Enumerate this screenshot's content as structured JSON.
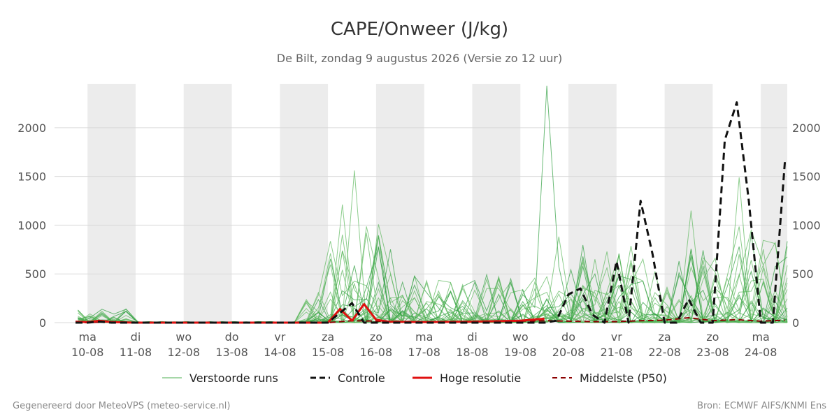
{
  "chart_data": {
    "type": "line",
    "title": "CAPE/Onweer (J/kg)",
    "subtitle": "De Bilt, zondag  9 augustus 2026 (Versie zo 12 uur)",
    "ylim": [
      0,
      2450
    ],
    "y_ticks": [
      0,
      500,
      1000,
      1500,
      2000
    ],
    "x_range_days": [
      -0.25,
      14.55
    ],
    "grid": true,
    "weekend_shading": [
      [
        0,
        1
      ],
      [
        2,
        3
      ],
      [
        4,
        5
      ],
      [
        6,
        7
      ],
      [
        8,
        9
      ],
      [
        10,
        11
      ],
      [
        12,
        13
      ],
      [
        14,
        14.55
      ]
    ],
    "x_ticks": [
      {
        "day": 0,
        "weekday": "ma",
        "date": "10-08"
      },
      {
        "day": 1,
        "weekday": "di",
        "date": "11-08"
      },
      {
        "day": 2,
        "weekday": "wo",
        "date": "12-08"
      },
      {
        "day": 3,
        "weekday": "do",
        "date": "13-08"
      },
      {
        "day": 4,
        "weekday": "vr",
        "date": "14-08"
      },
      {
        "day": 5,
        "weekday": "za",
        "date": "15-08"
      },
      {
        "day": 6,
        "weekday": "zo",
        "date": "16-08"
      },
      {
        "day": 7,
        "weekday": "ma",
        "date": "17-08"
      },
      {
        "day": 8,
        "weekday": "di",
        "date": "18-08"
      },
      {
        "day": 9,
        "weekday": "wo",
        "date": "19-08"
      },
      {
        "day": 10,
        "weekday": "do",
        "date": "20-08"
      },
      {
        "day": 11,
        "weekday": "vr",
        "date": "21-08"
      },
      {
        "day": 12,
        "weekday": "za",
        "date": "22-08"
      },
      {
        "day": 13,
        "weekday": "zo",
        "date": "23-08"
      },
      {
        "day": 14,
        "weekday": "ma",
        "date": "24-08"
      }
    ],
    "legend": {
      "placement": "bottom",
      "entries": [
        {
          "label": "Verstoorde runs",
          "color": "#4caf50",
          "style": "thin"
        },
        {
          "label": "Controle",
          "color": "#111111",
          "style": "dashed"
        },
        {
          "label": "Hoge resolutie",
          "color": "#e01010",
          "style": "solid"
        },
        {
          "label": "Middelste (P50)",
          "color": "#8b0000",
          "style": "dashed"
        }
      ]
    },
    "series": [
      {
        "name": "Controle",
        "color": "#111111",
        "x": [
          -0.25,
          0,
          0.25,
          0.5,
          1,
          2,
          3,
          4,
          5,
          5.5,
          5.75,
          6,
          6.25,
          7,
          8,
          9,
          9.5,
          9.75,
          10,
          10.25,
          10.5,
          10.75,
          11,
          11.25,
          11.5,
          11.75,
          12,
          12.25,
          12.5,
          12.75,
          13,
          13.25,
          13.5,
          13.75,
          14,
          14.25,
          14.5
        ],
        "y": [
          0,
          0,
          10,
          0,
          0,
          0,
          0,
          0,
          0,
          200,
          0,
          0,
          0,
          0,
          0,
          0,
          0,
          20,
          290,
          350,
          80,
          0,
          630,
          0,
          1250,
          700,
          0,
          0,
          240,
          0,
          0,
          1870,
          2260,
          1250,
          0,
          0,
          1650
        ]
      },
      {
        "name": "Hoge resolutie",
        "color": "#e01010",
        "x": [
          -0.25,
          0,
          0.25,
          0.5,
          1,
          2,
          3,
          4,
          5,
          5.25,
          5.5,
          5.75,
          6,
          6.25,
          7,
          8,
          9,
          9.5
        ],
        "y": [
          10,
          5,
          20,
          5,
          0,
          0,
          0,
          0,
          0,
          140,
          20,
          190,
          30,
          10,
          5,
          10,
          20,
          40
        ]
      },
      {
        "name": "Middelste (P50)",
        "color": "#8b0000",
        "x": [
          -0.25,
          0,
          0.5,
          1,
          2,
          3,
          4,
          5,
          5.5,
          6,
          6.5,
          7,
          8,
          9,
          9.5,
          10,
          10.5,
          11,
          11.5,
          12,
          12.5,
          13,
          13.5,
          14,
          14.5
        ],
        "y": [
          0,
          0,
          10,
          0,
          0,
          0,
          0,
          0,
          20,
          15,
          10,
          5,
          10,
          15,
          20,
          15,
          10,
          10,
          20,
          25,
          50,
          20,
          30,
          15,
          25
        ]
      }
    ]
  },
  "footer": {
    "left": "Gegenereerd door MeteoVPS (meteo-service.nl)",
    "right": "Bron: ECMWF AIFS/KNMI Ens"
  }
}
